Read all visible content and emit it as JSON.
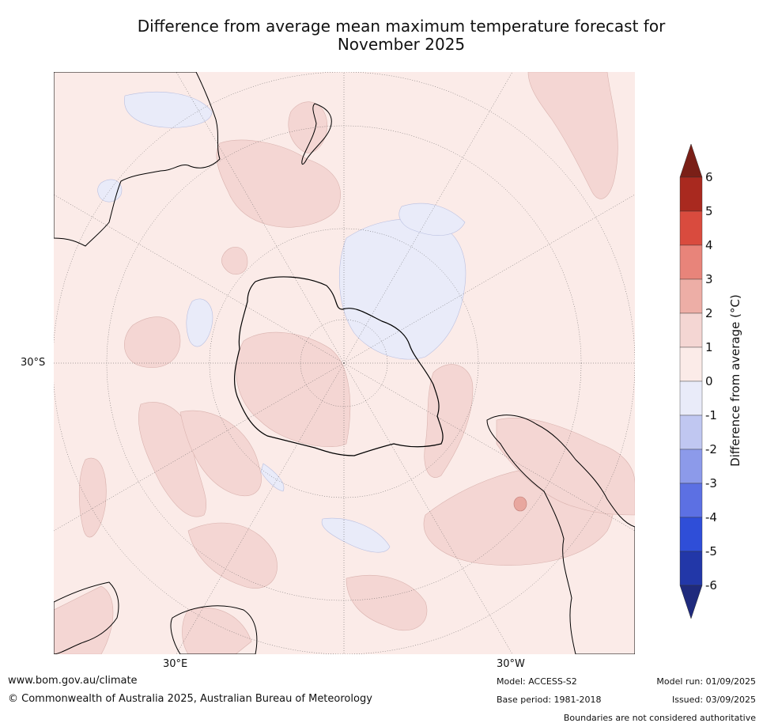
{
  "title": {
    "line1": "Difference from average mean maximum temperature forecast for",
    "line2": "November 2025"
  },
  "map": {
    "projection": "south-polar stereographic",
    "background_color": "#fbebe8",
    "axis_labels": {
      "lat": "30°S",
      "lon_left": "30°E",
      "lon_right": "30°W"
    }
  },
  "colorbar": {
    "label": "Difference from average (°C)",
    "ticks": [
      "6",
      "5",
      "4",
      "3",
      "2",
      "1",
      "0",
      "-1",
      "-2",
      "-3",
      "-4",
      "-5",
      "-6"
    ],
    "bins": [
      {
        "range": "5 to 6",
        "color": "#a9291f"
      },
      {
        "range": "4 to 5",
        "color": "#d94b3e"
      },
      {
        "range": "3 to 4",
        "color": "#e8847a"
      },
      {
        "range": "2 to 3",
        "color": "#edaea6"
      },
      {
        "range": "1 to 2",
        "color": "#f4d6d3"
      },
      {
        "range": "0 to 1",
        "color": "#fbebe8"
      },
      {
        "range": "-1 to 0",
        "color": "#e9ebf9"
      },
      {
        "range": "-2 to -1",
        "color": "#c0c7f1"
      },
      {
        "range": "-3 to -2",
        "color": "#8c9aea"
      },
      {
        "range": "-4 to -3",
        "color": "#5c70e3"
      },
      {
        "range": "-5 to -4",
        "color": "#2f4ed8"
      },
      {
        "range": "-6 to -5",
        "color": "#2237a8"
      }
    ],
    "over_color": "#7a1f17",
    "under_color": "#1f2a7d"
  },
  "footer": {
    "website": "www.bom.gov.au/climate",
    "copyright": "© Commonwealth of Australia 2025, Australian Bureau of Meteorology",
    "model": "Model: ACCESS-S2",
    "base_period": "Base period: 1981-2018",
    "model_run": "Model run: 01/09/2025",
    "issued": "Issued: 03/09/2025",
    "boundaries": "Boundaries are not considered authoritative"
  }
}
